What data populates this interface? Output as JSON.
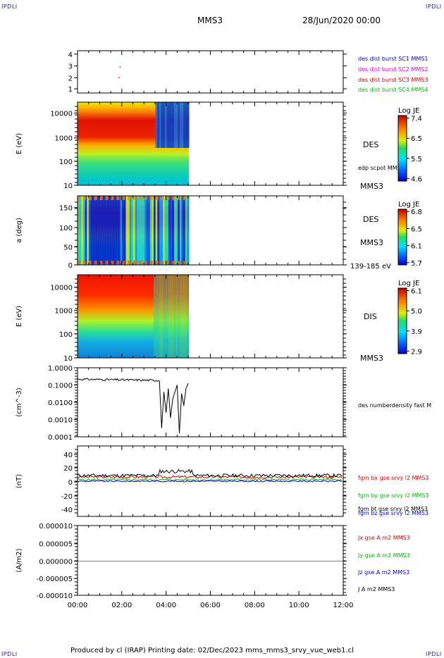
{
  "corners": {
    "tl": "IPDLI",
    "tr": "IPDLI",
    "bl": "IPDLI",
    "br": "IPDLI"
  },
  "header": {
    "spacecraft": "MMS3",
    "date": "28/Jun/2020 00:00"
  },
  "footer": {
    "text": "Produced by cl (IRAP)   Printing date: 02/Dec/2023   mms_mms3_srvy_vue_web1.cl"
  },
  "colors": {
    "red": "#dd0000",
    "green": "#00bb00",
    "blue": "#0000dd",
    "magenta": "#dd00dd",
    "black": "#000000"
  },
  "chart_data": [
    {
      "type": "scatter",
      "ylabel": "",
      "ylim": [
        0.5,
        4.5
      ],
      "yticks": [
        "4",
        "3",
        "2",
        "1"
      ],
      "legend": [
        {
          "label": "des dist burst SC1 MMS1",
          "color": "#0000dd"
        },
        {
          "label": "des dist burst SC2 MMS2",
          "color": "#dd00dd"
        },
        {
          "label": "des dist burst SC3 MMS3",
          "color": "#dd0000"
        },
        {
          "label": "des dist burst SC4 MMS4",
          "color": "#00bb00"
        }
      ],
      "points": [
        {
          "x": 1.9,
          "y": 3
        },
        {
          "x": 1.85,
          "y": 2
        }
      ]
    },
    {
      "type": "heatmap",
      "ylabel": "E (eV)",
      "yticks": [
        "10000",
        "1000",
        "100",
        "10"
      ],
      "labels": [
        "DES",
        "edp scpot MMS3",
        "MMS3"
      ],
      "colorbar": {
        "title": "Log JE",
        "ticks": [
          "7.4",
          "6.5",
          "5.5",
          "4.6"
        ]
      },
      "data_end": "05:00"
    },
    {
      "type": "heatmap",
      "ylabel": "a (deg)",
      "yticks": [
        "150",
        "100",
        "50",
        "0"
      ],
      "labels": [
        "DES",
        "MMS3",
        "139-185 eV"
      ],
      "colorbar": {
        "title": "Log JE",
        "ticks": [
          "6.8",
          "6.5",
          "6.1",
          "5.7"
        ]
      },
      "data_end": "05:00"
    },
    {
      "type": "heatmap",
      "ylabel": "E (eV)",
      "yticks": [
        "10000",
        "1000",
        "100",
        "10"
      ],
      "labels": [
        "DIS",
        "MMS3"
      ],
      "colorbar": {
        "title": "Log JE",
        "ticks": [
          "6.1",
          "5.0",
          "3.9",
          "2.9"
        ]
      },
      "data_end": "05:00"
    },
    {
      "type": "line",
      "ylabel": "(cm^-3)",
      "yticks": [
        "1.0000",
        "0.1000",
        "0.0100",
        "0.0010",
        "0.0001"
      ],
      "legend": [
        {
          "label": "des numberdensity fast M",
          "color": "#000000"
        }
      ]
    },
    {
      "type": "line",
      "ylabel": "(nT)",
      "ylim": [
        -50,
        50
      ],
      "yticks": [
        "40",
        "20",
        "0",
        "-20",
        "-40"
      ],
      "legend": [
        {
          "label": "fgm bx gse srvy l2 MMS3",
          "color": "#dd0000"
        },
        {
          "label": "fgm by gse srvy l2 MMS3",
          "color": "#00bb00"
        },
        {
          "label": "fgm bz gse srvy l2 MMS3",
          "color": "#0000dd"
        },
        {
          "label": "fgm bt gse srvy l2 MMS3",
          "color": "#000000"
        }
      ]
    },
    {
      "type": "line",
      "ylabel": "(A/m2)",
      "yticks": [
        "0.000010",
        "0.000005",
        "0.000000",
        "-0.000005",
        "-0.000010"
      ],
      "legend": [
        {
          "label": "Jx gse A m2 MMS3",
          "color": "#dd0000"
        },
        {
          "label": "Jy gse A m2 MMS3",
          "color": "#00bb00"
        },
        {
          "label": "Jz gse A m2 MMS3",
          "color": "#0000dd"
        },
        {
          "label": "J A m2 MMS3",
          "color": "#000000"
        }
      ]
    }
  ],
  "xaxis": {
    "ticks": [
      "00:00",
      "02:00",
      "04:00",
      "06:00",
      "08:00",
      "10:00",
      "12:00"
    ],
    "range_hours": [
      0,
      12
    ]
  }
}
